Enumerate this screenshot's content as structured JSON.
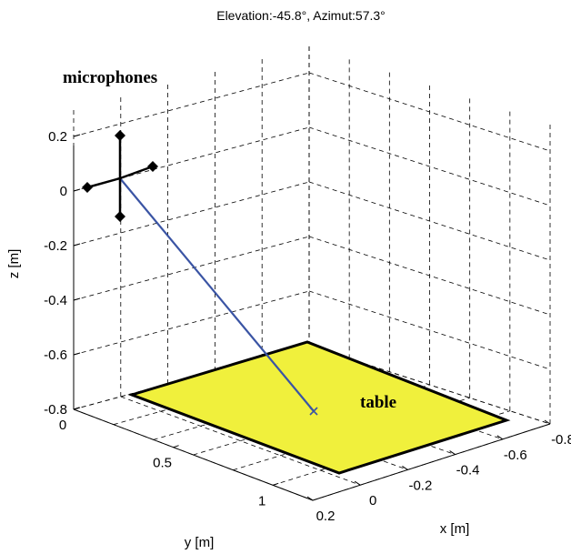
{
  "chart_data": {
    "type": "3d-scene",
    "title": "Elevation:-45.8°, Azimut:57.3°",
    "xlabel": "x [m]",
    "ylabel": "y [m]",
    "zlabel": "z [m]",
    "x_ticks": [
      "-0.8",
      "-0.6",
      "-0.4",
      "-0.2",
      "0",
      "0.2"
    ],
    "y_ticks": [
      "0",
      "0.5",
      "1"
    ],
    "z_ticks": [
      "0.2",
      "0",
      "-0.2",
      "-0.4",
      "-0.6",
      "-0.8"
    ],
    "xlim": [
      -0.8,
      0.2
    ],
    "ylim": [
      0,
      1.2
    ],
    "zlim": [
      -0.8,
      0.3
    ],
    "grid": true,
    "annotations": [
      {
        "text": "microphones",
        "target": "microphone-array"
      },
      {
        "text": "table",
        "target": "table-surface"
      }
    ],
    "objects": [
      {
        "name": "table",
        "color": "#f0f03c",
        "edge_color": "#000000",
        "z": -0.8
      },
      {
        "name": "microphones",
        "color": "#000000",
        "marker": "diamond",
        "count": 4
      },
      {
        "name": "direction-line",
        "color": "#3a54a4"
      }
    ]
  }
}
